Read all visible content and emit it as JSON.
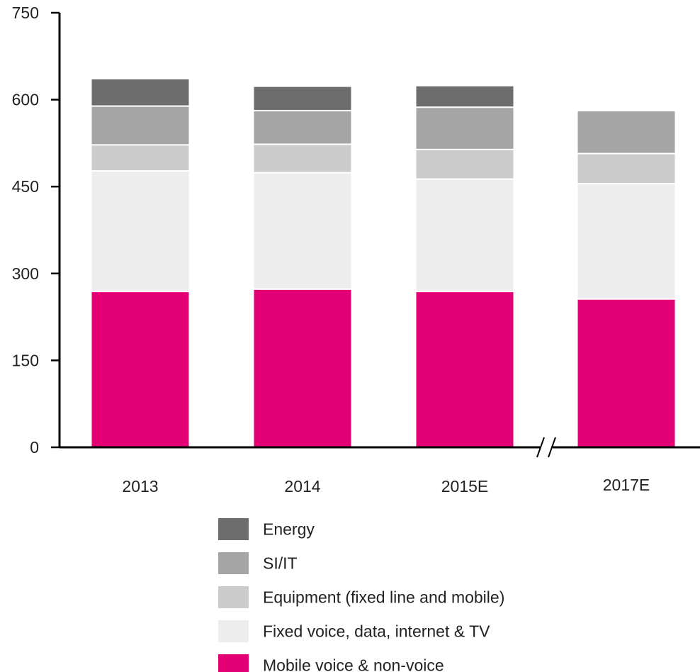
{
  "chart_data": {
    "type": "bar",
    "stacked": true,
    "categories": [
      "2013",
      "2014",
      "2015E",
      "2017E"
    ],
    "ylim": [
      0,
      750
    ],
    "yticks": [
      0,
      150,
      300,
      450,
      600,
      750
    ],
    "axis_break": "between 2015E and 2017E",
    "legend_position": "bottom",
    "series": [
      {
        "name": "Mobile voice & non-voice",
        "color": "#e20074",
        "values": [
          269,
          273,
          269,
          256
        ]
      },
      {
        "name": "Fixed voice, data, internet & TV",
        "color": "#ededed",
        "values": [
          208,
          201,
          194,
          199
        ]
      },
      {
        "name": "Equipment (fixed line and mobile)",
        "color": "#cccccc",
        "values": [
          45,
          49,
          51,
          52
        ]
      },
      {
        "name": "SI/IT",
        "color": "#a5a5a5",
        "values": [
          67,
          58,
          73,
          74
        ]
      },
      {
        "name": "Energy",
        "color": "#6d6d6d",
        "values": [
          46,
          41,
          36,
          0
        ]
      }
    ]
  }
}
